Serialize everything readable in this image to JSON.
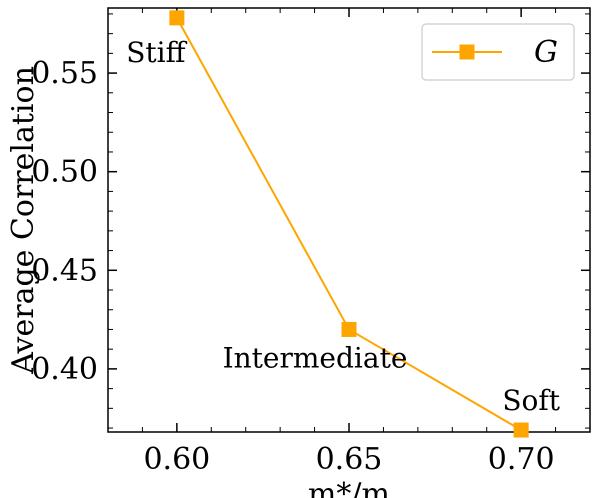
{
  "chart_data": {
    "type": "line",
    "title": "",
    "xlabel": "m*/m",
    "ylabel": "Average Correlation",
    "xlim": [
      0.58,
      0.72
    ],
    "ylim": [
      0.368,
      0.583
    ],
    "xticks": [
      0.6,
      0.65,
      0.7
    ],
    "xtick_labels": [
      "0.60",
      "0.65",
      "0.70"
    ],
    "yticks": [
      0.4,
      0.45,
      0.5,
      0.55
    ],
    "ytick_labels": [
      "0.40",
      "0.45",
      "0.50",
      "0.55"
    ],
    "grid": false,
    "legend_position": "top-right",
    "series": [
      {
        "name": "G",
        "color": "#FFA500",
        "marker": "square",
        "x": [
          0.6,
          0.65,
          0.7
        ],
        "y": [
          0.578,
          0.42,
          0.369
        ]
      }
    ],
    "annotations": [
      {
        "text": "Stiff",
        "x": 0.6,
        "y": 0.578
      },
      {
        "text": "Intermediate",
        "x": 0.65,
        "y": 0.42
      },
      {
        "text": "Soft",
        "x": 0.7,
        "y": 0.369
      }
    ]
  }
}
